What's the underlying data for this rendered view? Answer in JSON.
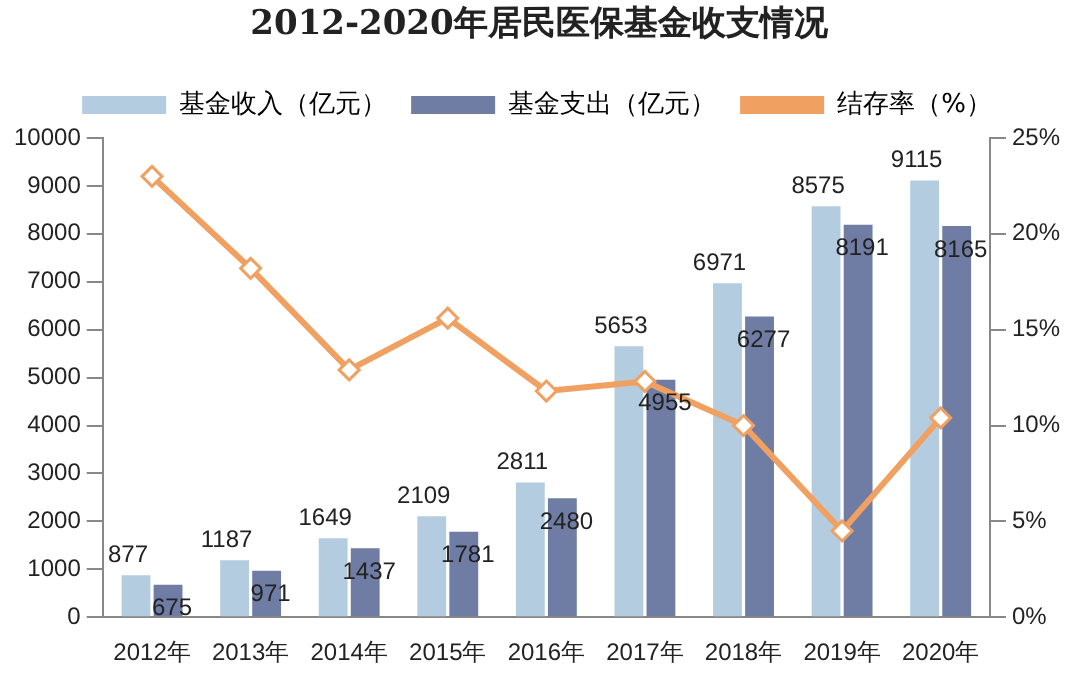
{
  "chart_data": {
    "type": "bar",
    "title": "2012-2020年居民医保基金收支情况",
    "categories": [
      "2012年",
      "2013年",
      "2014年",
      "2015年",
      "2016年",
      "2017年",
      "2018年",
      "2019年",
      "2020年"
    ],
    "series": [
      {
        "name": "基金收入（亿元）",
        "color": "#b4cce0",
        "values": [
          877,
          1187,
          1649,
          2109,
          2811,
          5653,
          6971,
          8575,
          9115
        ],
        "value_labels": [
          "877",
          "1187",
          "1649",
          "2109",
          "2811",
          "5653",
          "6971",
          "8575",
          "9115"
        ]
      },
      {
        "name": "基金支出（亿元）",
        "color": "#6f7ca3",
        "values": [
          675,
          971,
          1437,
          1781,
          2480,
          4955,
          6277,
          8191,
          8165
        ],
        "value_labels": [
          "675",
          "971",
          "1437",
          "1781",
          "2480",
          "4955",
          "6277",
          "8191",
          "8165"
        ]
      },
      {
        "name": "结存率（%）",
        "type": "line",
        "axis": "y2",
        "color": "#f0a060",
        "marker": "diamond",
        "values": [
          23.0,
          18.2,
          12.9,
          15.6,
          11.8,
          12.3,
          10.0,
          4.5,
          10.4
        ]
      }
    ],
    "ylim": [
      0,
      10000
    ],
    "yticks": [
      0,
      1000,
      2000,
      3000,
      4000,
      5000,
      6000,
      7000,
      8000,
      9000,
      10000
    ],
    "y2lim": [
      0,
      25
    ],
    "y2ticks": [
      {
        "value": 0,
        "label": "0%"
      },
      {
        "value": 5,
        "label": "5%"
      },
      {
        "value": 10,
        "label": "10%"
      },
      {
        "value": 15,
        "label": "15%"
      },
      {
        "value": 20,
        "label": "20%"
      },
      {
        "value": 25,
        "label": "25%"
      }
    ],
    "grid": false,
    "legend": "top"
  }
}
